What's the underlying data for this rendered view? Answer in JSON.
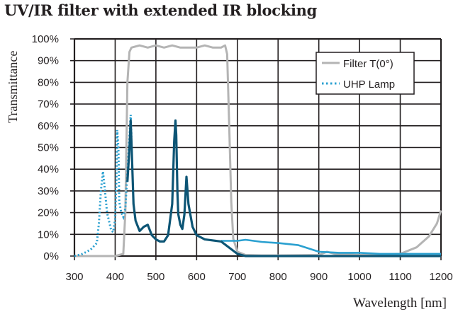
{
  "title": "UV/IR filter with extended IR blocking",
  "chart_data": {
    "type": "line",
    "title": "UV/IR filter with extended IR blocking",
    "xlabel": "Wavelength [nm]",
    "ylabel": "Transmittance",
    "xlim": [
      300,
      1200
    ],
    "ylim": [
      0,
      100
    ],
    "grid": true,
    "legend_position": "upper right",
    "x_ticks": [
      "300",
      "400",
      "500",
      "600",
      "700",
      "800",
      "900",
      "1000",
      "1100",
      "1200"
    ],
    "y_ticks": [
      "0%",
      "10%",
      "20%",
      "30%",
      "40%",
      "50%",
      "60%",
      "70%",
      "80%",
      "90%",
      "100%"
    ],
    "legend": [
      {
        "label": "Filter T(0°)",
        "style": "solid",
        "color": "#b4b4b4"
      },
      {
        "label": "UHP Lamp",
        "style": "dotted",
        "color": "#2aa0d0"
      }
    ],
    "series": [
      {
        "name": "Filter T(0°)",
        "color": "#b4b4b4",
        "style": "solid",
        "x": [
          300,
          400,
          420,
          425,
          430,
          435,
          440,
          460,
          480,
          500,
          520,
          540,
          560,
          580,
          600,
          620,
          640,
          660,
          670,
          675,
          680,
          685,
          690,
          700,
          720,
          760,
          800,
          900,
          920,
          940,
          1000,
          1050,
          1100,
          1140,
          1170,
          1190,
          1200
        ],
        "y": [
          0,
          0,
          1,
          20,
          80,
          94,
          96,
          97,
          96,
          97,
          96,
          97,
          96,
          96,
          96,
          97,
          96,
          96,
          97,
          93,
          60,
          25,
          8,
          2,
          0.5,
          0.3,
          0.3,
          0.5,
          2,
          1,
          0.5,
          0.5,
          1,
          4,
          9,
          15,
          21
        ]
      },
      {
        "name": "UHP Lamp",
        "color": "#2aa0d0",
        "dark_color": "#0d5575",
        "style": "dotted below filter passband, solid within",
        "x": [
          300,
          320,
          340,
          355,
          360,
          365,
          370,
          375,
          380,
          390,
          395,
          400,
          403,
          405,
          408,
          410,
          415,
          420,
          425,
          430,
          435,
          438,
          440,
          445,
          450,
          460,
          470,
          480,
          490,
          500,
          510,
          520,
          530,
          540,
          545,
          548,
          550,
          553,
          555,
          560,
          565,
          570,
          575,
          580,
          590,
          600,
          620,
          660,
          700,
          720,
          760,
          800,
          850,
          900,
          950,
          1000,
          1050,
          1100,
          1150,
          1200
        ],
        "y": [
          0,
          1,
          3,
          6,
          15,
          30,
          39,
          30,
          20,
          12,
          11,
          17,
          35,
          58,
          50,
          25,
          20,
          18,
          22,
          38,
          55,
          65,
          55,
          25,
          17,
          12,
          14,
          15,
          10,
          8,
          7,
          7,
          10,
          25,
          55,
          65,
          58,
          30,
          20,
          15,
          13,
          20,
          38,
          25,
          14,
          10,
          8,
          7,
          7,
          7.5,
          6.5,
          6,
          5,
          2,
          1.5,
          1.5,
          1,
          1,
          1,
          1
        ]
      }
    ]
  },
  "legend": {
    "filter_label": "Filter T(0°)",
    "lamp_label": "UHP Lamp"
  },
  "axes": {
    "xlabel": "Wavelength [nm]",
    "ylabel": "Transmittance"
  }
}
